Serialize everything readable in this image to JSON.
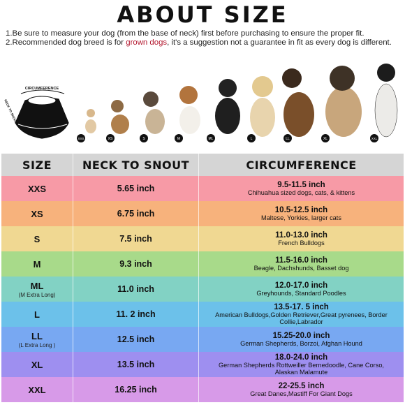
{
  "title": "ABOUT SIZE",
  "notes": {
    "line1": "1.Be sure to measure your dog (from the base of neck) first before purchasing to ensure the proper fit.",
    "line2_pre": "2.Recommended dog breed is for ",
    "line2_highlight": "grown dogs",
    "line2_post": ", it's a  suggestion not a guarantee in fit as every dog is different."
  },
  "diagram": {
    "circumference_label": "CIRCUMFERENCE",
    "neck_label": "NECK TO SNOUT"
  },
  "dog_tags": [
    "XXS",
    "XS",
    "S",
    "M",
    "ML",
    "L",
    "LL",
    "XL",
    "XXL"
  ],
  "table": {
    "headers": [
      "SIZE",
      "NECK TO SNOUT",
      "CIRCUMFERENCE"
    ],
    "rows": [
      {
        "size": "XXS",
        "size_note": "",
        "neck": "5.65 inch",
        "circ": "9.5-11.5 inch",
        "breeds": "Chihuahua sized dogs, cats, & kittens"
      },
      {
        "size": "XS",
        "size_note": "",
        "neck": "6.75 inch",
        "circ": "10.5-12.5 inch",
        "breeds": "Maltese, Yorkies, larger cats"
      },
      {
        "size": "S",
        "size_note": "",
        "neck": "7.5 inch",
        "circ": "11.0-13.0 inch",
        "breeds": "French Bulldogs"
      },
      {
        "size": "M",
        "size_note": "",
        "neck": "9.3 inch",
        "circ": "11.5-16.0 inch",
        "breeds": "Beagle, Dachshunds, Basset dog"
      },
      {
        "size": "ML",
        "size_note": "(M Extra Long)",
        "neck": "11.0 inch",
        "circ": "12.0-17.0 inch",
        "breeds": "Greyhounds, Standard Poodles"
      },
      {
        "size": "L",
        "size_note": "",
        "neck": "11. 2 inch",
        "circ": "13.5-17. 5 inch",
        "breeds": "American Bulldogs,Golden Retriever,Great pyrenees, Border Collie,Labrador"
      },
      {
        "size": "LL",
        "size_note": "(L Extra Long )",
        "neck": "12.5 inch",
        "circ": "15.25-20.0 inch",
        "breeds": "German Shepherds, Borzoi, Afghan Hound"
      },
      {
        "size": "XL",
        "size_note": "",
        "neck": "13.5 inch",
        "circ": "18.0-24.0 inch",
        "breeds": "German Shepherds Rottweiller Bernedoodle, Cane Corso, Alaskan Malamute"
      },
      {
        "size": "XXL",
        "size_note": "",
        "neck": "16.25 inch",
        "circ": "22-25.5 inch",
        "breeds": "Great Danes,Mastiff For Giant Dogs"
      }
    ]
  },
  "colors": {
    "header": "#d5d5d5",
    "rows": [
      "#f79aa6",
      "#f7b27c",
      "#f0d892",
      "#a8da8a",
      "#82d2c4",
      "#6cc1ea",
      "#78a8f2",
      "#9e8ff0",
      "#d79ae8"
    ]
  }
}
